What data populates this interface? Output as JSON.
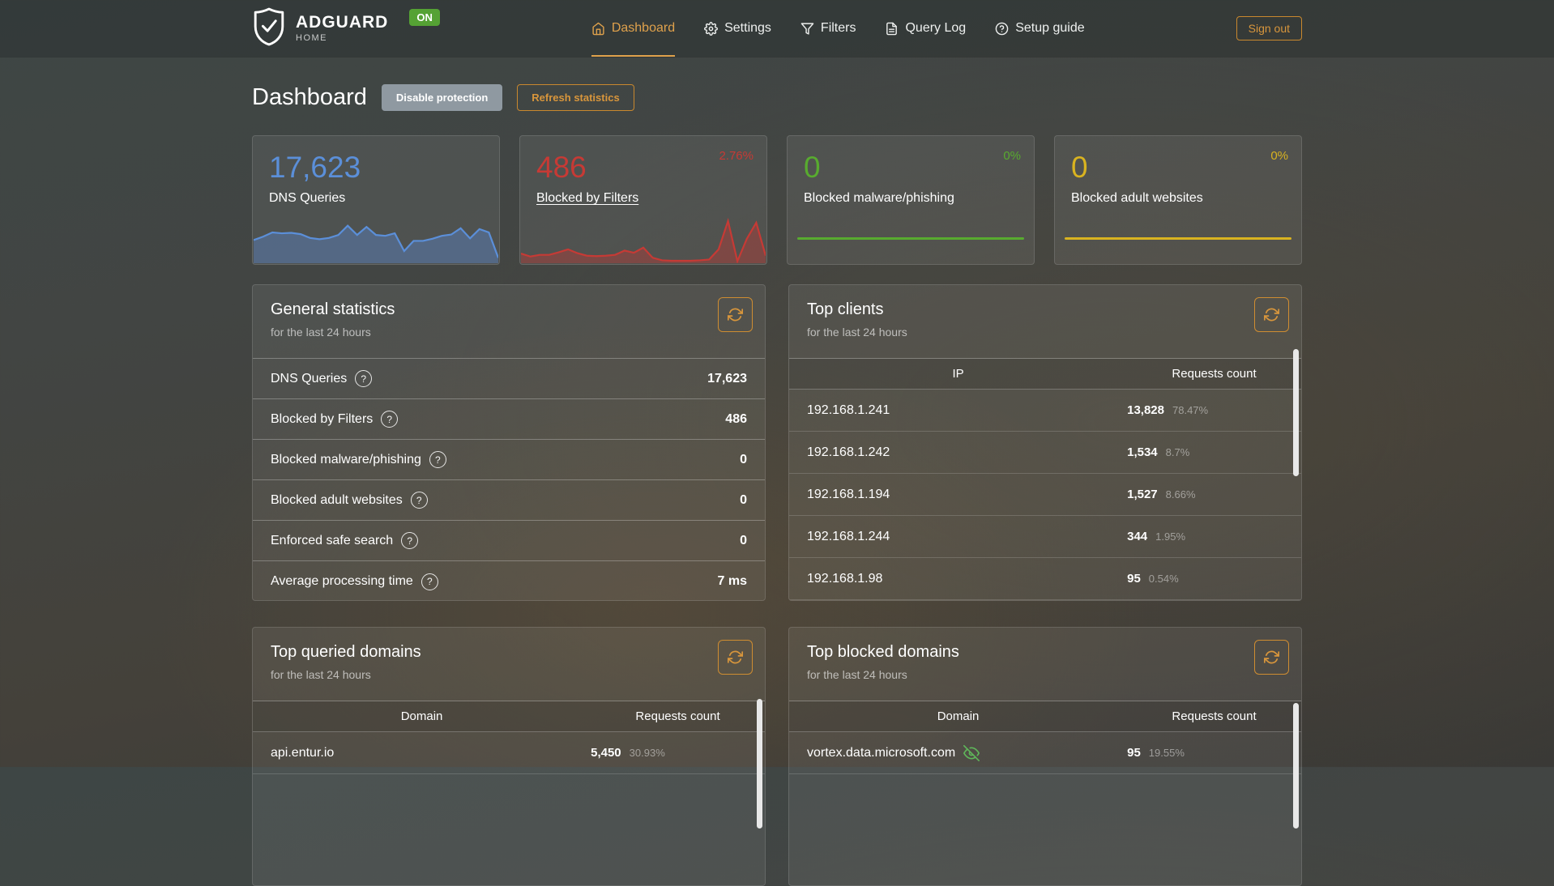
{
  "nav": {
    "brand": {
      "name": "ADGUARD",
      "sub": "HOME",
      "status_badge": "ON"
    },
    "items": [
      {
        "label": "Dashboard"
      },
      {
        "label": "Settings"
      },
      {
        "label": "Filters"
      },
      {
        "label": "Query Log"
      },
      {
        "label": "Setup guide"
      }
    ],
    "sign_out_label": "Sign out"
  },
  "page": {
    "title": "Dashboard",
    "disable_protection_label": "Disable protection",
    "refresh_statistics_label": "Refresh statistics"
  },
  "colors": {
    "accent_orange": "#d8963c",
    "badge_green": "#55a234",
    "bar_green": "#56a42a",
    "bar_red": "#c03434",
    "track_white": "#ececec"
  },
  "stat_cards": [
    {
      "value": "17,623",
      "label": "DNS Queries",
      "percent": "",
      "color": "#5b8fd9",
      "spark": [
        0.52,
        0.6,
        0.7,
        0.68,
        0.69,
        0.66,
        0.57,
        0.54,
        0.57,
        0.64,
        0.86,
        0.64,
        0.83,
        0.64,
        0.62,
        0.68,
        0.26,
        0.5,
        0.5,
        0.55,
        0.62,
        0.65,
        0.8,
        0.56,
        0.78,
        0.7,
        0.1
      ]
    },
    {
      "value": "486",
      "label": "Blocked by Filters",
      "percent": "2.76%",
      "color": "#c63a35",
      "spark": [
        0.2,
        0.13,
        0.17,
        0.17,
        0.23,
        0.3,
        0.21,
        0.15,
        0.14,
        0.15,
        0.17,
        0.27,
        0.22,
        0.34,
        0.1,
        0.04,
        0.03,
        0.03,
        0.03,
        0.04,
        0.06,
        0.3,
        0.97,
        0.02,
        0.55,
        0.93,
        0.15
      ]
    },
    {
      "value": "0",
      "label": "Blocked malware/phishing",
      "percent": "0%",
      "color": "#58ab2f"
    },
    {
      "value": "0",
      "label": "Blocked adult websites",
      "percent": "0%",
      "color": "#d9b320"
    }
  ],
  "general_stats": {
    "title": "General statistics",
    "subtitle": "for the last 24 hours",
    "rows": [
      {
        "label": "DNS Queries",
        "value": "17,623"
      },
      {
        "label": "Blocked by Filters",
        "value": "486"
      },
      {
        "label": "Blocked malware/phishing",
        "value": "0"
      },
      {
        "label": "Blocked adult websites",
        "value": "0"
      },
      {
        "label": "Enforced safe search",
        "value": "0"
      },
      {
        "label": "Average processing time",
        "value": "7 ms"
      }
    ]
  },
  "top_clients": {
    "title": "Top clients",
    "subtitle": "for the last 24 hours",
    "columns": [
      "IP",
      "Requests count"
    ],
    "rows": [
      {
        "ip": "192.168.1.241",
        "count": "13,828",
        "percent": "78.47%",
        "fill": 78.47,
        "bar_color": "#56a42a"
      },
      {
        "ip": "192.168.1.242",
        "count": "1,534",
        "percent": "8.7%",
        "fill": 8.7,
        "bar_color": "#c03434"
      },
      {
        "ip": "192.168.1.194",
        "count": "1,527",
        "percent": "8.66%",
        "fill": 8.66,
        "bar_color": "#c03434"
      },
      {
        "ip": "192.168.1.244",
        "count": "344",
        "percent": "1.95%",
        "fill": 1.95,
        "bar_color": "#c03434"
      },
      {
        "ip": "192.168.1.98",
        "count": "95",
        "percent": "0.54%",
        "fill": 0.54,
        "bar_color": "#c03434"
      }
    ]
  },
  "top_queried": {
    "title": "Top queried domains",
    "subtitle": "for the last 24 hours",
    "columns": [
      "Domain",
      "Requests count"
    ],
    "rows": [
      {
        "domain": "api.entur.io",
        "count": "5,450",
        "percent": "30.93%",
        "fill": 30.93,
        "bar_color": "#c03434"
      }
    ]
  },
  "top_blocked": {
    "title": "Top blocked domains",
    "subtitle": "for the last 24 hours",
    "columns": [
      "Domain",
      "Requests count"
    ],
    "rows": [
      {
        "domain": "vortex.data.microsoft.com",
        "count": "95",
        "percent": "19.55%",
        "fill": 19.55,
        "bar_color": "#c03434"
      }
    ]
  }
}
